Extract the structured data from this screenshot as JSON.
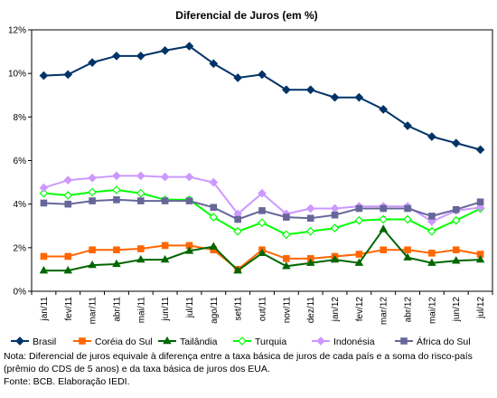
{
  "chart_data": {
    "type": "line",
    "title": "Diferencial de Juros (em %)",
    "xlabel": "",
    "ylabel": "",
    "ylim": [
      0,
      12
    ],
    "yticks": [
      "0%",
      "2%",
      "4%",
      "6%",
      "8%",
      "10%",
      "12%"
    ],
    "grid": false,
    "legend_position": "bottom",
    "categories": [
      "jan/11",
      "fev/11",
      "mar/11",
      "abr/11",
      "mai/11",
      "jun/11",
      "jul/11",
      "ago/11",
      "set/11",
      "out/11",
      "nov/11",
      "dez/11",
      "jan/12",
      "fev/12",
      "mar/12",
      "abr/12",
      "mai/12",
      "jun/12",
      "jul/12"
    ],
    "series": [
      {
        "name": "Brasil",
        "color": "#003366",
        "marker": "diamond",
        "values": [
          9.9,
          9.95,
          10.5,
          10.8,
          10.8,
          11.05,
          11.25,
          10.45,
          9.8,
          9.95,
          9.25,
          9.25,
          8.9,
          8.9,
          8.35,
          7.6,
          7.1,
          6.8,
          6.5
        ]
      },
      {
        "name": "Coréia do Sul",
        "color": "#FF6600",
        "marker": "square",
        "values": [
          1.6,
          1.6,
          1.9,
          1.9,
          1.95,
          2.1,
          2.1,
          1.9,
          1.0,
          1.9,
          1.5,
          1.5,
          1.6,
          1.7,
          1.9,
          1.9,
          1.75,
          1.9,
          1.7
        ]
      },
      {
        "name": "Tailândia",
        "color": "#006600",
        "marker": "triangle",
        "values": [
          0.95,
          0.95,
          1.2,
          1.25,
          1.45,
          1.45,
          1.85,
          2.05,
          0.95,
          1.75,
          1.15,
          1.3,
          1.45,
          1.3,
          2.85,
          1.55,
          1.3,
          1.4,
          1.45
        ]
      },
      {
        "name": "Turquia",
        "color": "#00FF00",
        "marker": "diamond-open",
        "values": [
          4.5,
          4.4,
          4.55,
          4.65,
          4.5,
          4.2,
          4.2,
          3.4,
          2.75,
          3.15,
          2.6,
          2.75,
          2.9,
          3.25,
          3.3,
          3.3,
          2.75,
          3.25,
          3.8
        ]
      },
      {
        "name": "Indonésia",
        "color": "#CC99FF",
        "marker": "diamond",
        "values": [
          4.75,
          5.1,
          5.2,
          5.3,
          5.3,
          5.25,
          5.25,
          5.0,
          3.55,
          4.5,
          3.55,
          3.8,
          3.8,
          3.9,
          3.9,
          3.9,
          3.2,
          3.7,
          3.85
        ]
      },
      {
        "name": "África do Sul",
        "color": "#666699",
        "marker": "square",
        "values": [
          4.05,
          4.0,
          4.15,
          4.2,
          4.15,
          4.15,
          4.15,
          3.85,
          3.3,
          3.7,
          3.4,
          3.35,
          3.5,
          3.8,
          3.8,
          3.8,
          3.45,
          3.75,
          4.1
        ]
      }
    ]
  },
  "note": {
    "line1": "Nota: Diferencial de juros equivale à diferença entre a taxa básica de juros de cada país e a soma do risco-país",
    "line2": "(prêmio do CDS de 5 anos) e da taxa básica de juros dos EUA.",
    "line3": "Fonte: BCB. Elaboração IEDI."
  }
}
